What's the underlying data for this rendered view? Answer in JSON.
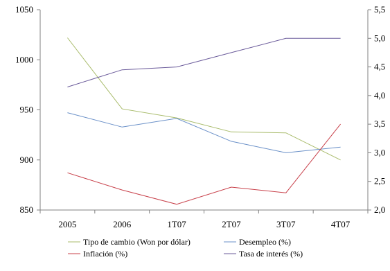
{
  "chart_data": {
    "type": "line",
    "categories": [
      "2005",
      "2006",
      "1T07",
      "2T07",
      "3T07",
      "4T07"
    ],
    "y_left": {
      "ylim": [
        850,
        1050
      ],
      "ticks": [
        "850",
        "900",
        "950",
        "1000",
        "1050"
      ]
    },
    "y_right": {
      "ylim": [
        2.0,
        5.5
      ],
      "ticks": [
        "2,0",
        "2,5",
        "3,0",
        "3,5",
        "4,0",
        "4,5",
        "5,0",
        "5,5"
      ]
    },
    "grid": false,
    "legend_position": "bottom",
    "series": [
      {
        "name": "Tipo de cambio (Won por dólar)",
        "axis": "left",
        "color": "#a8bb6a",
        "values": [
          1022,
          951,
          942,
          928,
          927,
          900
        ]
      },
      {
        "name": "Desempleo (%)",
        "axis": "right",
        "color": "#6a90c8",
        "values": [
          3.7,
          3.45,
          3.6,
          3.2,
          3.0,
          3.1
        ]
      },
      {
        "name": "Inflación (%)",
        "axis": "right",
        "color": "#c8404a",
        "values": [
          2.65,
          2.35,
          2.1,
          2.4,
          2.3,
          3.5
        ]
      },
      {
        "name": "Tasa de interés (%)",
        "axis": "right",
        "color": "#6a5a9a",
        "values": [
          4.15,
          4.45,
          4.5,
          4.75,
          5.0,
          5.0
        ]
      }
    ]
  }
}
